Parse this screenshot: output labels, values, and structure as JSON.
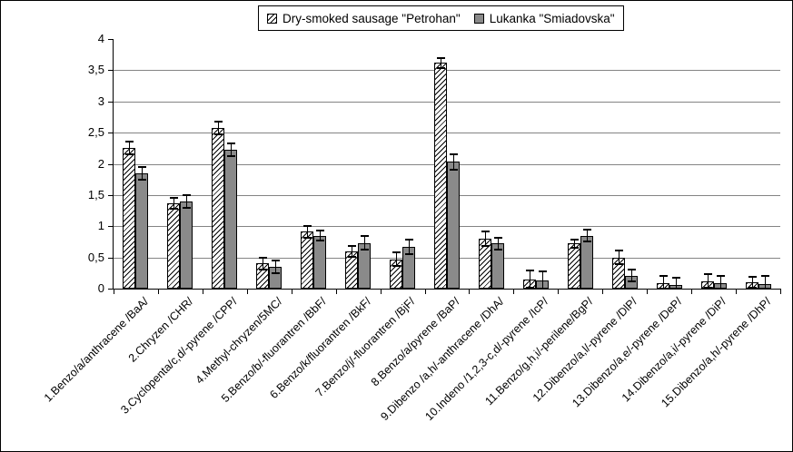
{
  "legend": {
    "items": [
      {
        "label": "Dry-smoked sausage \"Petrohan\"",
        "swatch": "diagonal-hatch"
      },
      {
        "label": "Lukanka \"Smiadovska\"",
        "swatch": "solid-gray"
      }
    ]
  },
  "y_axis": {
    "tick_labels": [
      "0",
      "0,5",
      "1",
      "1,5",
      "2",
      "2,5",
      "3",
      "3,5",
      "4"
    ]
  },
  "chart_data": {
    "type": "bar",
    "title": "",
    "xlabel": "",
    "ylabel": "",
    "categories": [
      "1.Benzo/a/anthracene /BaA/",
      "2.Chryzen /CHR/",
      "3.Cyclopenta/c,d/-pyrene /CPP/",
      "4.Methyl-chryzen/5MC/",
      "5.Benzo/b/-fluorantren /BbF/",
      "6.Benzo/k/fluorantren /BkF/",
      "7.Benzo/j/-fluorantren /BjF/",
      "8.Benzo/a/pyrene /BaP/",
      "9.Dibenzo /a,h/-anthracene /DhA/",
      "10.Indeno /1,2,3-c,d/-pyrene /IcP/",
      "11.Benzo/g,h,i/-perilene/BgP/",
      "12.Dibenzo/a,l/-pyrene /DlP/",
      "13.Dibenzo/a,e/-pyrene /DeP/",
      "14.Dibenzo/a,i/-pyrene /DiP/",
      "15.Dibenzo/a,h/-pyrene /DhP/"
    ],
    "series": [
      {
        "name": "Dry-smoked sausage \"Petrohan\"",
        "pattern": "diagonal-hatch",
        "values": [
          2.25,
          1.37,
          2.58,
          0.4,
          0.91,
          0.6,
          0.47,
          3.62,
          0.8,
          0.15,
          0.72,
          0.5,
          0.09,
          0.12,
          0.1
        ],
        "errors": [
          0.1,
          0.09,
          0.1,
          0.1,
          0.1,
          0.09,
          0.11,
          0.08,
          0.12,
          0.14,
          0.07,
          0.11,
          0.11,
          0.11,
          0.09
        ]
      },
      {
        "name": "Lukanka \"Smiadovska\"",
        "pattern": "solid",
        "values": [
          1.85,
          1.4,
          2.23,
          0.35,
          0.85,
          0.73,
          0.67,
          2.03,
          0.72,
          0.13,
          0.85,
          0.21,
          0.06,
          0.09,
          0.07
        ],
        "errors": [
          0.1,
          0.1,
          0.1,
          0.1,
          0.08,
          0.11,
          0.12,
          0.12,
          0.1,
          0.14,
          0.09,
          0.09,
          0.12,
          0.11,
          0.13
        ]
      }
    ],
    "ylim": [
      0,
      4
    ],
    "ytick_step": 0.5,
    "grid": true,
    "error_bars": true,
    "legend_position": "top-center",
    "colors": {
      "series2_fill": "#8a8a8a",
      "bar_border": "#000000",
      "gridline": "#848484",
      "axis": "#000000",
      "background": "#ffffff"
    }
  }
}
